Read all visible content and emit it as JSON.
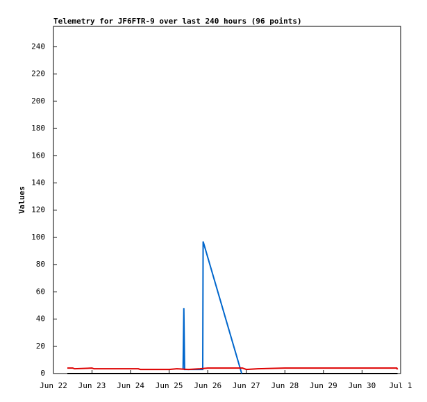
{
  "chart_data": {
    "type": "line",
    "title": "Telemetry for JF6FTR-9 over last 240 hours (96 points)",
    "y_label": "Values",
    "xlim": [
      22,
      31
    ],
    "ylim": [
      0,
      255
    ],
    "xticks": [
      {
        "value": 22,
        "label": "Jun 22"
      },
      {
        "value": 23,
        "label": "Jun 23"
      },
      {
        "value": 24,
        "label": "Jun 24"
      },
      {
        "value": 25,
        "label": "Jun 25"
      },
      {
        "value": 26,
        "label": "Jun 26"
      },
      {
        "value": 27,
        "label": "Jun 27"
      },
      {
        "value": 28,
        "label": "Jun 28"
      },
      {
        "value": 29,
        "label": "Jun 29"
      },
      {
        "value": 30,
        "label": "Jun 30"
      },
      {
        "value": 31,
        "label": "Jul 1"
      }
    ],
    "yticks": [
      0,
      20,
      40,
      60,
      80,
      100,
      120,
      140,
      160,
      180,
      200,
      220,
      240
    ],
    "series": [
      {
        "color": "#000000",
        "x": [
          22.36,
          30.92
        ],
        "values": [
          0,
          0
        ]
      },
      {
        "color": "#0066cc",
        "x": [
          25.36,
          25.38,
          25.4,
          25.87,
          25.88,
          26.88
        ],
        "values": [
          3,
          48,
          3,
          3,
          97,
          0
        ]
      },
      {
        "color": "#dd0000",
        "x": [
          22.36,
          22.5,
          22.55,
          23.0,
          23.05,
          24.2,
          24.25,
          25.0,
          25.2,
          25.5,
          25.8,
          26.0,
          26.9,
          27.0,
          27.3,
          28.0,
          29.0,
          30.0,
          30.9,
          30.92
        ],
        "values": [
          4,
          4,
          3.5,
          4,
          3.5,
          3.5,
          3,
          3,
          3.5,
          3,
          3.5,
          4,
          4,
          3,
          3.5,
          4,
          4,
          4,
          4,
          3
        ]
      }
    ]
  }
}
